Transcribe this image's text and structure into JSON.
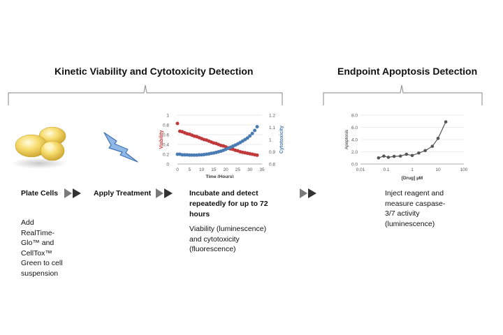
{
  "titles": {
    "kinetic": "Kinetic Viability and Cytotoxicity Detection",
    "endpoint": "Endpoint Apoptosis Detection"
  },
  "steps": {
    "plate": {
      "label": "Plate Cells",
      "desc": [
        "Add",
        "RealTime-",
        "Glo™ and",
        "CellTox™",
        "Green to cell",
        "suspension"
      ]
    },
    "treatment": {
      "label": "Apply Treatment"
    },
    "incubate": {
      "label": [
        "Incubate  and detect",
        "repeatedly for up to 72",
        "hours"
      ],
      "desc": [
        "Viability (luminescence)",
        "and cytotoxicity",
        "(fluorescence)"
      ]
    },
    "inject": {
      "desc": [
        "Inject reagent and",
        "measure caspase-",
        "3/7 activity",
        "(luminescence)"
      ]
    }
  },
  "colors": {
    "viability": "#c0393b",
    "cytotoxicity": "#4a7cb3",
    "apoptosis": "#555555",
    "arrow": "#4d4d4d",
    "bolt": "#8fb8e6"
  },
  "icons": [
    "cells-icon",
    "lightning-bolt-icon",
    "double-arrow-icon"
  ],
  "chart_data": [
    {
      "type": "scatter",
      "xlabel": "Time (Hours)",
      "ylabel_left": "Viability",
      "ylabel_right": "Cytotoxicity",
      "xlim": [
        0,
        35
      ],
      "ylim_left": [
        0,
        1
      ],
      "ylim_right": [
        0.8,
        1.2
      ],
      "x_ticks": [
        "0",
        "5",
        "10",
        "15",
        "20",
        "25",
        "30",
        "35"
      ],
      "y_ticks_left": [
        "0",
        "0.2",
        "0.4",
        "0.6",
        "0.8",
        "1"
      ],
      "y_ticks_right": [
        "0.8",
        "0.9",
        "1",
        "1.1",
        "1.2"
      ],
      "series": [
        {
          "name": "Viability",
          "axis": "left",
          "x": [
            0,
            1,
            2,
            3,
            4,
            5,
            6,
            7,
            8,
            9,
            10,
            11,
            12,
            13,
            14,
            15,
            16,
            17,
            18,
            19,
            20,
            21,
            22,
            23,
            24,
            25,
            26,
            27,
            28,
            29,
            30,
            31,
            32,
            33
          ],
          "values": [
            0.83,
            0.67,
            0.66,
            0.64,
            0.62,
            0.61,
            0.59,
            0.57,
            0.56,
            0.54,
            0.52,
            0.5,
            0.49,
            0.47,
            0.45,
            0.43,
            0.42,
            0.4,
            0.38,
            0.37,
            0.35,
            0.33,
            0.31,
            0.3,
            0.28,
            0.27,
            0.25,
            0.24,
            0.23,
            0.22,
            0.21,
            0.2,
            0.19,
            0.18
          ]
        },
        {
          "name": "Cytotoxicity",
          "axis": "right",
          "x": [
            0,
            1,
            2,
            3,
            4,
            5,
            6,
            7,
            8,
            9,
            10,
            11,
            12,
            13,
            14,
            15,
            16,
            17,
            18,
            19,
            20,
            21,
            22,
            23,
            24,
            25,
            26,
            27,
            28,
            29,
            30,
            31,
            32,
            33
          ],
          "values": [
            0.88,
            0.88,
            0.875,
            0.875,
            0.875,
            0.873,
            0.873,
            0.873,
            0.873,
            0.875,
            0.875,
            0.877,
            0.88,
            0.883,
            0.887,
            0.89,
            0.895,
            0.9,
            0.905,
            0.912,
            0.92,
            0.928,
            0.937,
            0.946,
            0.955,
            0.965,
            0.976,
            0.988,
            1.0,
            1.013,
            1.03,
            1.05,
            1.075,
            1.105
          ]
        }
      ]
    },
    {
      "type": "line",
      "xscale": "log",
      "xlabel": "[Drug] µM",
      "ylabel": "Apoptosis",
      "xlim": [
        0.01,
        100
      ],
      "ylim": [
        0,
        8
      ],
      "x_ticks": [
        "0.01",
        "0.1",
        "1",
        "10",
        "100"
      ],
      "y_ticks": [
        "0.0",
        "2.0",
        "4.0",
        "6.0",
        "8.0"
      ],
      "series": [
        {
          "name": "Apoptosis",
          "x": [
            0.05,
            0.08,
            0.12,
            0.2,
            0.35,
            0.6,
            1.0,
            1.8,
            3.2,
            6.0,
            10,
            20
          ],
          "values": [
            1.0,
            1.3,
            1.1,
            1.25,
            1.3,
            1.6,
            1.4,
            1.8,
            2.2,
            2.9,
            4.2,
            6.9
          ]
        }
      ]
    }
  ]
}
